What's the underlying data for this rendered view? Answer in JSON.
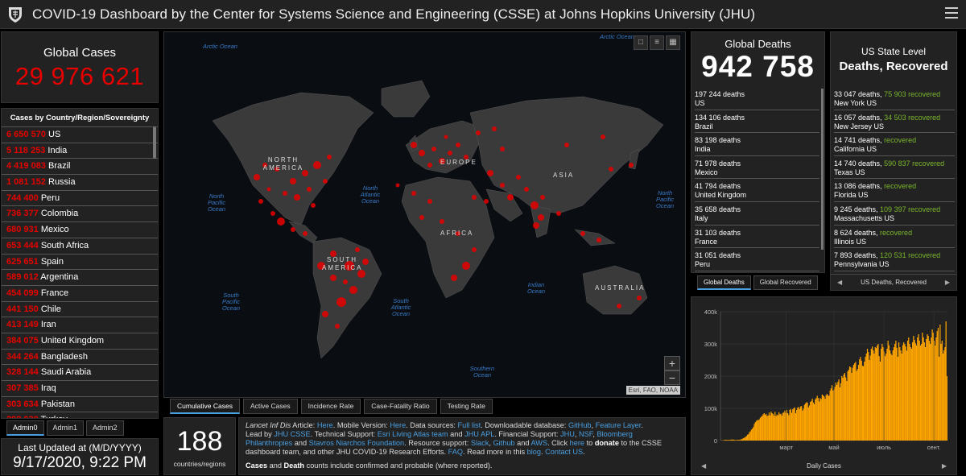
{
  "header": {
    "title": "COVID-19 Dashboard by the Center for Systems Science and Engineering (CSSE) at Johns Hopkins University (JHU)"
  },
  "global_cases": {
    "label": "Global Cases",
    "value": "29 976 621"
  },
  "country_list": {
    "header": "Cases by Country/Region/Sovereignty",
    "rows": [
      {
        "n": "6 650 570",
        "c": "US"
      },
      {
        "n": "5 118 253",
        "c": "India"
      },
      {
        "n": "4 419 083",
        "c": "Brazil"
      },
      {
        "n": "1 081 152",
        "c": "Russia"
      },
      {
        "n": "744 400",
        "c": "Peru"
      },
      {
        "n": "736 377",
        "c": "Colombia"
      },
      {
        "n": "680 931",
        "c": "Mexico"
      },
      {
        "n": "653 444",
        "c": "South Africa"
      },
      {
        "n": "625 651",
        "c": "Spain"
      },
      {
        "n": "589 012",
        "c": "Argentina"
      },
      {
        "n": "454 099",
        "c": "France"
      },
      {
        "n": "441 150",
        "c": "Chile"
      },
      {
        "n": "413 149",
        "c": "Iran"
      },
      {
        "n": "384 075",
        "c": "United Kingdom"
      },
      {
        "n": "344 264",
        "c": "Bangladesh"
      },
      {
        "n": "328 144",
        "c": "Saudi Arabia"
      },
      {
        "n": "307 385",
        "c": "Iraq"
      },
      {
        "n": "303 634",
        "c": "Pakistan"
      },
      {
        "n": "298 039",
        "c": "Turkey"
      }
    ]
  },
  "admin_tabs": [
    "Admin0",
    "Admin1",
    "Admin2"
  ],
  "last_updated": {
    "label": "Last Updated at (M/D/YYYY)",
    "value": "9/17/2020, 9:22 PM"
  },
  "map": {
    "oceans": [
      "Arctic Ocean",
      "Arctic Ocean",
      "North Pacific Ocean",
      "North Atlantic Ocean",
      "North Pacific Ocean",
      "South Pacific Ocean",
      "South Atlantic Ocean",
      "Indian Ocean",
      "Southern Ocean"
    ],
    "continents": [
      "NORTH AMERICA",
      "EUROPE",
      "ASIA",
      "AFRICA",
      "SOUTH AMERICA",
      "AUSTRALIA"
    ],
    "attribution": "Esri, FAO, NOAA",
    "tabs": [
      "Cumulative Cases",
      "Active Cases",
      "Incidence Rate",
      "Case-Fatality Ratio",
      "Testing Rate"
    ]
  },
  "countries_count": {
    "value": "188",
    "label": "countries/regions"
  },
  "info": {
    "p1_a": "Lancet Inf Dis",
    "p1_b": " Article: ",
    "here1": "Here",
    "p1_c": ". Mobile Version: ",
    "here2": "Here",
    "p1_d": ". Data sources: ",
    "fulllist": "Full list",
    "p1_e": ". Downloadable database: ",
    "github": "GitHub",
    "p1_f": ", ",
    "featurelayer": "Feature Layer",
    "p1_g": ".",
    "p2_a": "Lead by ",
    "jhucsse": "JHU CSSE",
    "p2_b": ". Technical Support: ",
    "esri": "Esri Living Atlas team",
    "p2_c": " and ",
    "jhuapl": "JHU APL",
    "p2_d": ". Financial Support: ",
    "jhu": "JHU",
    "p2_e": ", ",
    "nsf": "NSF",
    "p2_f": ", ",
    "bloomberg": "Bloomberg Philanthropies",
    "p2_g": " and ",
    "stavros": "Stavros Niarchos Foundation",
    "p2_h": ". Resource support: ",
    "slack": "Slack",
    "p2_i": ", ",
    "github2": "Github",
    "p2_j": " and ",
    "aws": "AWS",
    "p2_k": ". Click ",
    "here3": "here",
    "p2_l": " to ",
    "donate": "donate",
    "p2_m": " to the CSSE dashboard team, and other JHU COVID-19 Research Efforts. ",
    "faq": "FAQ",
    "p2_n": ". Read more in this ",
    "blog": "blog",
    "p2_o": ". ",
    "contact": "Contact US",
    "p2_p": ".",
    "p3_a": "Cases",
    "p3_b": " and ",
    "p3_c": "Death",
    "p3_d": " counts include confirmed and probable (where reported)."
  },
  "global_deaths": {
    "label": "Global Deaths",
    "value": "942 758",
    "rows": [
      {
        "d": "197 244 deaths",
        "c": "US"
      },
      {
        "d": "134 106 deaths",
        "c": "Brazil"
      },
      {
        "d": "83 198 deaths",
        "c": "India"
      },
      {
        "d": "71 978 deaths",
        "c": "Mexico"
      },
      {
        "d": "41 794 deaths",
        "c": "United Kingdom"
      },
      {
        "d": "35 658 deaths",
        "c": "Italy"
      },
      {
        "d": "31 103 deaths",
        "c": "France"
      },
      {
        "d": "31 051 deaths",
        "c": "Peru"
      }
    ],
    "tabs": [
      "Global Deaths",
      "Global Recovered"
    ]
  },
  "us_state": {
    "label": "US State Level",
    "value": "Deaths, Recovered",
    "rows": [
      {
        "d": "33 047 deaths, ",
        "r": "75 903 recovered",
        "s": "New York US"
      },
      {
        "d": "16 057 deaths, ",
        "r": "34 503 recovered",
        "s": "New Jersey US"
      },
      {
        "d": "14 741 deaths, ",
        "r": " recovered",
        "s": "California US"
      },
      {
        "d": "14 740 deaths, ",
        "r": "590 837 recovered",
        "s": "Texas US"
      },
      {
        "d": "13 086 deaths, ",
        "r": " recovered",
        "s": "Florida US"
      },
      {
        "d": "9 245 deaths, ",
        "r": "109 397 recovered",
        "s": "Massachusetts US"
      },
      {
        "d": "8 624 deaths, ",
        "r": " recovered",
        "s": "Illinois US"
      },
      {
        "d": "7 893 deaths, ",
        "r": "120 531 recovered",
        "s": "Pennsylvania US"
      }
    ],
    "footer": "US Deaths, Recovered"
  },
  "chart_data": {
    "type": "bar",
    "title": "",
    "xlabel": "Daily Cases",
    "ylabel": "",
    "ylim": [
      0,
      400000
    ],
    "yticks": [
      "0",
      "100k",
      "200k",
      "300k",
      "400k"
    ],
    "xticks": [
      "март",
      "май",
      "июль",
      "сент."
    ],
    "bar_color": "#ffa500",
    "footer": "Daily Cases",
    "series": [
      {
        "values": [
          500,
          600,
          900,
          1200,
          2000,
          2500,
          1900,
          1800,
          2400,
          1500,
          2800,
          3100,
          3000,
          2700,
          2100,
          1500,
          1900,
          2000,
          2400,
          2200,
          3500,
          4500,
          5800,
          7500,
          9200,
          11500,
          14000,
          18000,
          20000,
          26000,
          29000,
          34000,
          37000,
          42000,
          52000,
          57000,
          61000,
          64000,
          63000,
          66000,
          71000,
          74000,
          77000,
          82000,
          85000,
          80000,
          83000,
          76000,
          78000,
          87000,
          78000,
          90000,
          85000,
          83000,
          77000,
          89000,
          76000,
          81000,
          78000,
          88000,
          82000,
          83000,
          77000,
          86000,
          87000,
          93000,
          86000,
          95000,
          85000,
          79000,
          95000,
          98000,
          86000,
          97000,
          100000,
          103000,
          85000,
          95000,
          102000,
          104000,
          98000,
          106000,
          107000,
          93000,
          99000,
          111000,
          115000,
          119000,
          118000,
          103000,
          109000,
          120000,
          123000,
          130000,
          118000,
          113000,
          128000,
          132000,
          139000,
          132000,
          121000,
          132000,
          129000,
          143000,
          140000,
          137000,
          130000,
          141000,
          145000,
          140000,
          139000,
          155000,
          162000,
          172000,
          155000,
          159000,
          167000,
          180000,
          173000,
          182000,
          190000,
          165000,
          178000,
          200000,
          195000,
          205000,
          210000,
          196000,
          185000,
          215000,
          220000,
          230000,
          228000,
          210000,
          226000,
          235000,
          240000,
          244000,
          216000,
          222000,
          235000,
          252000,
          260000,
          248000,
          232000,
          231000,
          245000,
          260000,
          270000,
          285000,
          275000,
          250000,
          264000,
          285000,
          292000,
          280000,
          270000,
          290000,
          287000,
          295000,
          300000,
          262000,
          245000,
          285000,
          300000,
          290000,
          276000,
          262000,
          270000,
          285000,
          310000,
          296000,
          280000,
          270000,
          265000,
          280000,
          290000,
          300000,
          310000,
          288000,
          260000,
          305000,
          290000,
          280000,
          270000,
          296000,
          305000,
          300000,
          292000,
          279000,
          310000,
          320000,
          300000,
          290000,
          285000,
          305000,
          325000,
          312000,
          302000,
          295000,
          320000,
          330000,
          310000,
          295000,
          300000,
          335000,
          320000,
          305000,
          290000,
          315000,
          330000,
          325000,
          310000,
          300000,
          320000,
          345000,
          335000,
          310000,
          295000,
          320000,
          340000,
          350000,
          260000,
          360000,
          300000,
          310000,
          270000,
          280000,
          290000,
          370000,
          200000
        ]
      }
    ]
  }
}
